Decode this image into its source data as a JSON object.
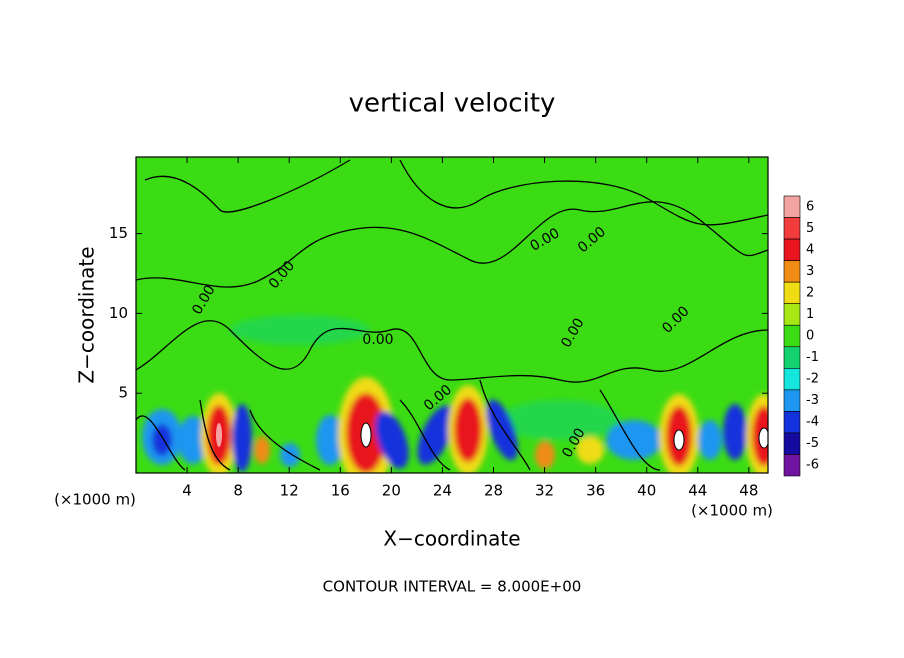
{
  "chart_data": {
    "type": "contour",
    "title": "vertical velocity",
    "x_label": "X−coordinate",
    "y_label": "Z−coordinate",
    "x_unit": "(×1000 m)",
    "y_unit": "(×1000 m)",
    "xlim": [
      0,
      49.5
    ],
    "ylim": [
      0,
      19.8
    ],
    "xticks": [
      4,
      8,
      12,
      16,
      20,
      24,
      28,
      32,
      36,
      40,
      44,
      48
    ],
    "yticks": [
      5,
      10,
      15
    ],
    "contour_labels": [
      "0.00",
      "0.00",
      "0.00",
      "0.00",
      "0.00",
      "0.00",
      "0.00",
      "0.00",
      "0.00"
    ],
    "footnote": "CONTOUR INTERVAL = 8.000E+00",
    "colorbar": {
      "levels": [
        6,
        5,
        4,
        3,
        2,
        1,
        0,
        -1,
        -2,
        -3,
        -4,
        -5,
        -6
      ],
      "colors": [
        "#f4a3a3",
        "#f03c3c",
        "#e8141e",
        "#f08c14",
        "#f0dc14",
        "#a8e614",
        "#3cdc14",
        "#14d26e",
        "#14e6dc",
        "#1e96f0",
        "#1432dc",
        "#140aa0",
        "#6e14a0"
      ]
    }
  }
}
